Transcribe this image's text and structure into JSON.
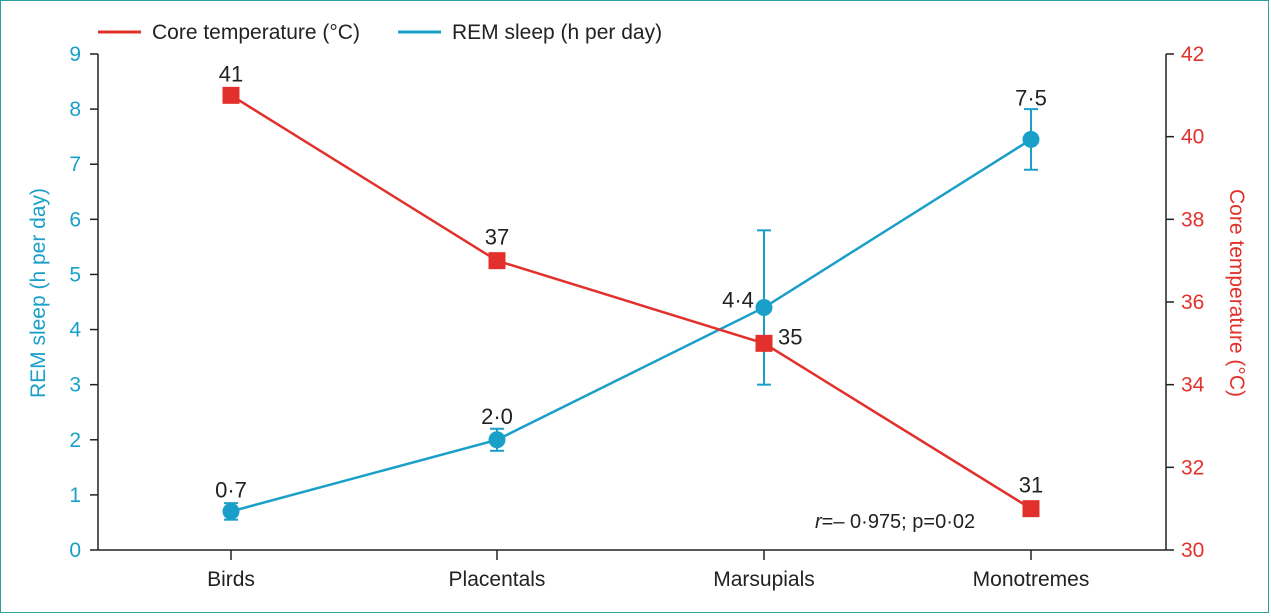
{
  "chart_data": {
    "type": "line",
    "categories": [
      "Birds",
      "Placentals",
      "Marsupials",
      "Monotremes"
    ],
    "series": [
      {
        "name": "Core temperature (°C)",
        "axis": "right",
        "color": "#e2312c",
        "marker": "square",
        "values": [
          41,
          37,
          35,
          31
        ],
        "labels": [
          "41",
          "37",
          "35",
          "31"
        ]
      },
      {
        "name": "REM sleep (h per day)",
        "axis": "left",
        "color": "#1aa0c8",
        "marker": "circle",
        "values": [
          0.7,
          2.0,
          4.4,
          7.45
        ],
        "labels": [
          "0·7",
          "2·0",
          "4·4",
          "7·5"
        ],
        "error_low": [
          0.55,
          1.8,
          3.0,
          6.9
        ],
        "error_high": [
          0.85,
          2.2,
          5.8,
          8.0
        ]
      }
    ],
    "left_axis": {
      "label": "REM sleep (h per day)",
      "ylim": [
        0,
        9
      ],
      "ticks": [
        "0",
        "1",
        "2",
        "3",
        "4",
        "5",
        "6",
        "7",
        "8",
        "9"
      ]
    },
    "right_axis": {
      "label": "Core temperature (°C)",
      "ylim": [
        30,
        42
      ],
      "ticks": [
        "30",
        "32",
        "34",
        "36",
        "38",
        "40",
        "42"
      ]
    },
    "annotation": {
      "r_symbol": "r",
      "rest": "=– 0·975; p=0·02"
    },
    "legend_position": "top-left",
    "grid": false
  }
}
